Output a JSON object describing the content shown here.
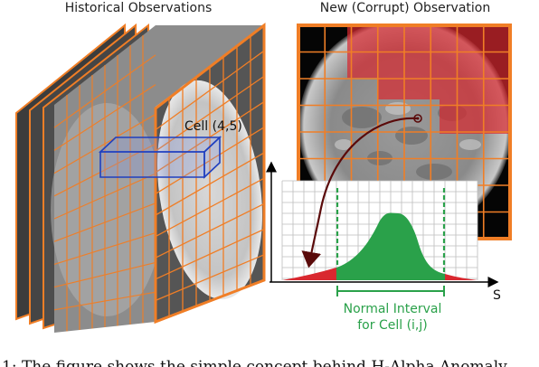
{
  "titles": {
    "historical": "Historical Observations",
    "new_observation": "New (Corrupt) Observation"
  },
  "labels": {
    "cell": "Cell (4,5)",
    "axis_s": "S",
    "interval_line1": "Normal Interval",
    "interval_line2": "for Cell (i,j)"
  },
  "caption": "1:  The figure shows the simple concept behind H-Alpha Anomaly",
  "colors": {
    "grid_orange": "#f07e26",
    "cell_blue": "#1f3fbf",
    "anomaly_red": "#d9282f",
    "normal_green": "#2aa14a",
    "arrow_dark_red": "#5a0a0a"
  },
  "icons": [
    "solar-disk-image",
    "curved-arrow",
    "dashed-interval-line"
  ]
}
